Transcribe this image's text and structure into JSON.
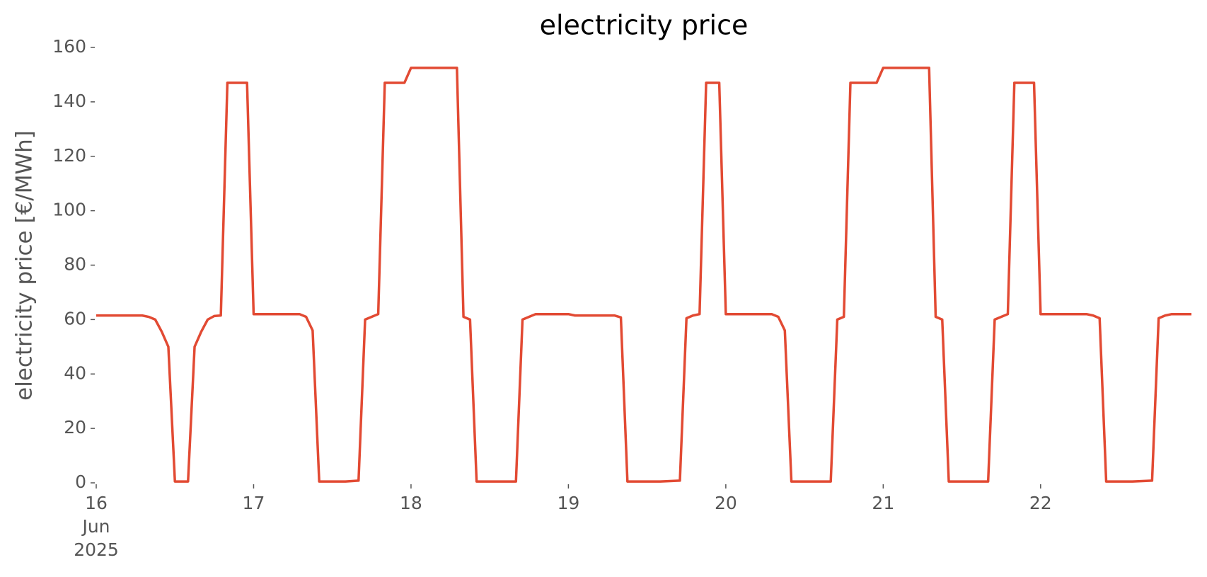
{
  "chart_data": {
    "type": "line",
    "title": "electricity price",
    "y_label": "electricity price [€/MWh]",
    "x": [
      16,
      16.25,
      16.2917,
      16.3333,
      16.375,
      16.4167,
      16.4583,
      16.5,
      16.5833,
      16.625,
      16.6667,
      16.7083,
      16.75,
      16.7917,
      16.8333,
      16.9583,
      17,
      17.2917,
      17.3333,
      17.375,
      17.4167,
      17.5833,
      17.6667,
      17.7083,
      17.75,
      17.7917,
      17.8333,
      17.9583,
      18,
      18.2917,
      18.3333,
      18.375,
      18.4167,
      18.6667,
      18.7083,
      18.75,
      18.7917,
      19,
      19.0417,
      19.2917,
      19.3333,
      19.375,
      19.5833,
      19.7083,
      19.75,
      19.7917,
      19.8333,
      19.875,
      19.9583,
      20,
      20.2917,
      20.3333,
      20.375,
      20.4167,
      20.6667,
      20.7083,
      20.75,
      20.7917,
      20.9583,
      21,
      21.2917,
      21.3333,
      21.375,
      21.4167,
      21.6667,
      21.7083,
      21.75,
      21.7917,
      21.8333,
      21.9583,
      22,
      22.2917,
      22.3333,
      22.375,
      22.4167,
      22.5833,
      22.7083,
      22.75,
      22.7917,
      22.8333,
      22.9583
    ],
    "series": [
      {
        "name": "electricity price",
        "color": "#E24A33",
        "values": [
          61.5,
          61.5,
          61.5,
          61,
          60,
          55.5,
          50,
          0.5,
          0.5,
          50,
          55.5,
          60,
          61.3,
          61.5,
          147,
          147,
          62,
          62,
          61,
          56,
          0.5,
          0.5,
          0.8,
          60,
          61,
          62,
          147,
          147,
          152.5,
          152.5,
          61,
          60,
          0.5,
          0.5,
          60,
          61,
          62,
          62,
          61.5,
          61.5,
          60.8,
          0.5,
          0.5,
          0.8,
          60.5,
          61.5,
          62,
          147,
          147,
          62,
          62,
          61,
          56,
          0.5,
          0.5,
          60,
          61,
          147,
          147,
          152.5,
          152.5,
          61,
          60,
          0.5,
          0.5,
          60,
          61,
          62,
          147,
          147,
          62,
          62,
          61.5,
          60.5,
          0.5,
          0.5,
          0.8,
          60.5,
          61.5,
          62,
          62
        ]
      }
    ],
    "xlim": [
      16,
      22.9583
    ],
    "xticks": [
      {
        "value": 16,
        "label": "16\nJun\n2025"
      },
      17,
      18,
      19,
      20,
      21,
      22
    ],
    "ylim": [
      0,
      160
    ],
    "yticks": [
      0,
      20,
      40,
      60,
      80,
      100,
      120,
      140,
      160
    ],
    "grid": false
  }
}
